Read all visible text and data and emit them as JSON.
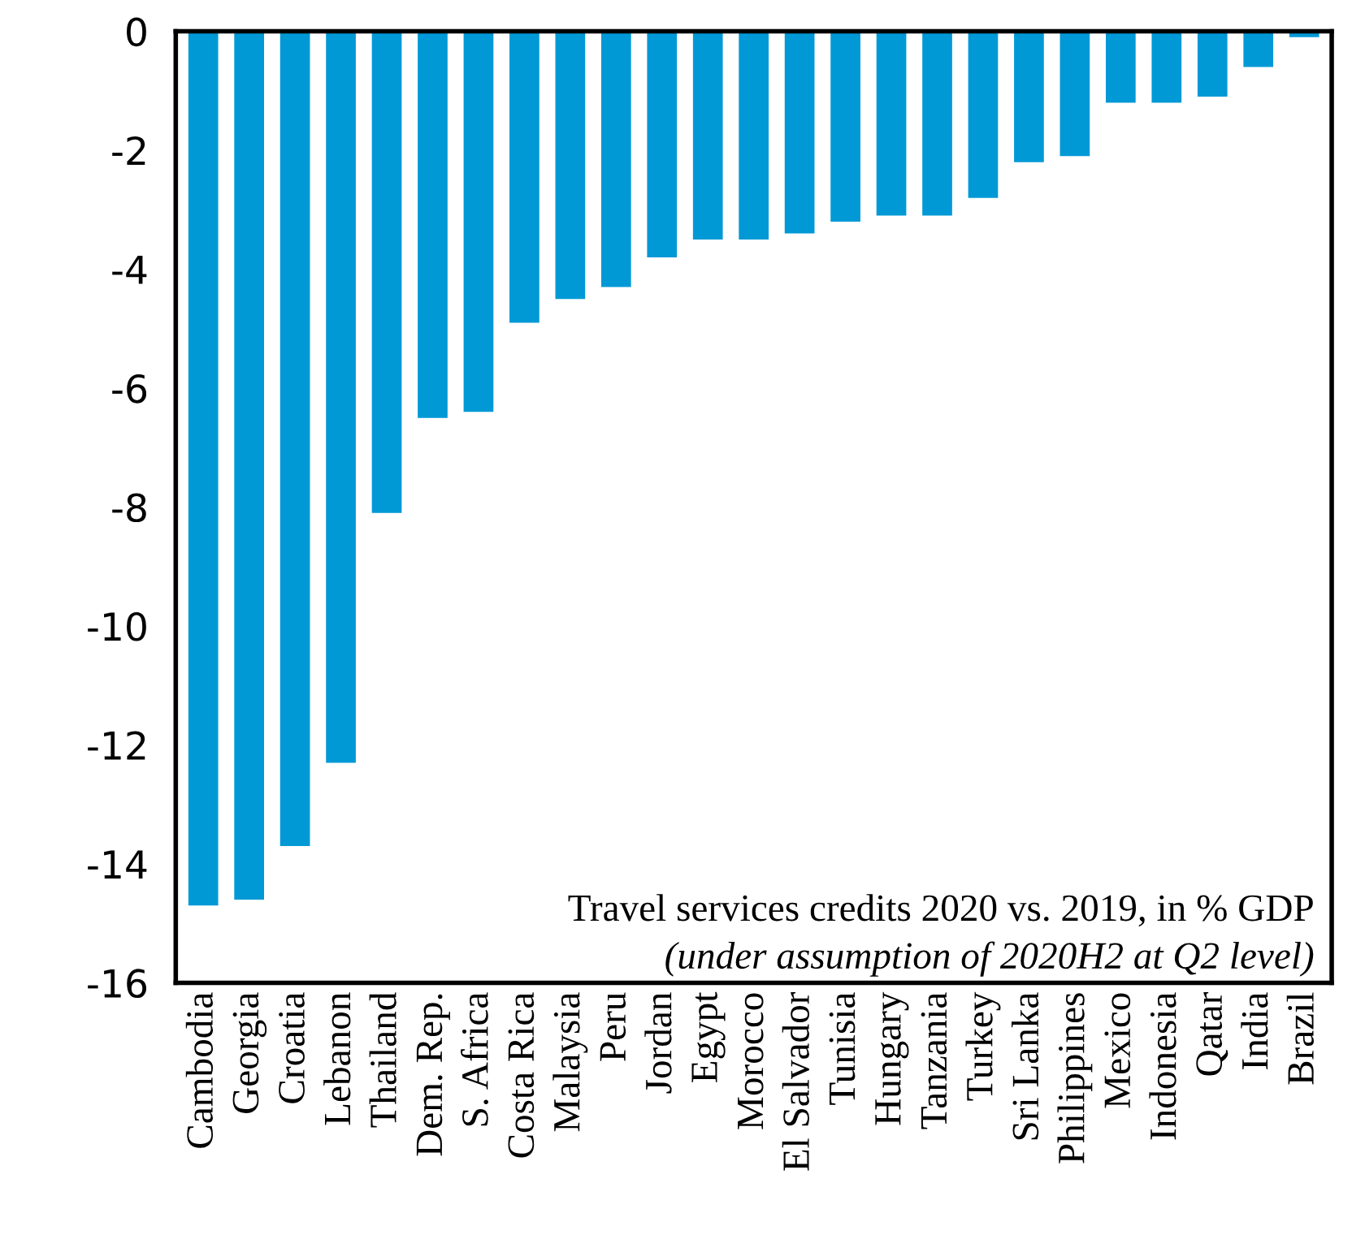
{
  "chart_data": {
    "type": "bar",
    "categories": [
      "Cambodia",
      "Georgia",
      "Croatia",
      "Lebanon",
      "Thailand",
      "Dem. Rep.",
      "S. Africa",
      "Costa Rica",
      "Malaysia",
      "Peru",
      "Jordan",
      "Egypt",
      "Morocco",
      "El Salvador",
      "Tunisia",
      "Hungary",
      "Tanzania",
      "Turkey",
      "Sri Lanka",
      "Philippines",
      "Mexico",
      "Indonesia",
      "Qatar",
      "India",
      "Brazil"
    ],
    "values": [
      -14.7,
      -14.6,
      -13.7,
      -12.3,
      -8.1,
      -6.5,
      -6.4,
      -4.9,
      -4.5,
      -4.3,
      -3.8,
      -3.5,
      -3.5,
      -3.4,
      -3.2,
      -3.1,
      -3.1,
      -2.8,
      -2.2,
      -2.1,
      -1.2,
      -1.2,
      -1.1,
      -0.6,
      -0.1
    ],
    "color": "#0099d6",
    "ylim": [
      -16,
      0
    ],
    "yticks": [
      0,
      -2,
      -4,
      -6,
      -8,
      -10,
      -12,
      -14,
      -16
    ],
    "annotations": [
      "Travel services credits 2020 vs. 2019, in % GDP",
      "(under assumption of 2020H2 at Q2 level)"
    ],
    "grid": false
  }
}
